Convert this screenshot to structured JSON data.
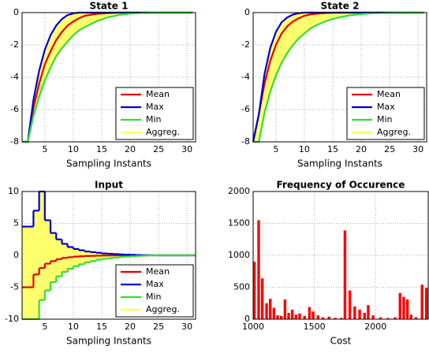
{
  "chart_data": [
    {
      "type": "line",
      "title": "State 1",
      "xlabel": "Sampling Instants",
      "x": [
        1,
        2,
        3,
        4,
        5,
        6,
        7,
        8,
        9,
        10,
        11,
        12,
        14,
        16,
        18,
        20,
        22,
        25,
        31
      ],
      "series": [
        {
          "name": "Mean",
          "color": "#e00000",
          "values": [
            -8,
            -8,
            -5.9,
            -4.4,
            -3.2,
            -2.4,
            -1.7,
            -1.2,
            -0.8,
            -0.55,
            -0.35,
            -0.2,
            -0.08,
            -0.03,
            0,
            0,
            0,
            0,
            0
          ]
        },
        {
          "name": "Max",
          "color": "#0000cc",
          "values": [
            -8,
            -8,
            -5.4,
            -3.6,
            -2.3,
            -1.4,
            -0.8,
            -0.4,
            -0.15,
            -0.05,
            0,
            0,
            0,
            0,
            0,
            0,
            0,
            0,
            0
          ]
        },
        {
          "name": "Min",
          "color": "#33dd33",
          "values": [
            -8,
            -8,
            -6.4,
            -5.2,
            -4.2,
            -3.4,
            -2.7,
            -2.2,
            -1.8,
            -1.4,
            -1.1,
            -0.9,
            -0.55,
            -0.3,
            -0.15,
            -0.06,
            -0.02,
            0,
            0
          ]
        },
        {
          "name": "Aggreg.",
          "color": "#ffff55"
        }
      ],
      "xlim": [
        1,
        31.5
      ],
      "xticks": [
        5,
        10,
        15,
        20,
        25,
        30
      ],
      "ylim": [
        -8,
        0
      ],
      "yticks": [
        0,
        -2,
        -4,
        -6,
        -8
      ],
      "grid": true,
      "legend": "lower right"
    },
    {
      "type": "line",
      "title": "State 2",
      "xlabel": "Sampling Instants",
      "x": [
        1,
        2,
        3,
        4,
        5,
        6,
        7,
        8,
        9,
        10,
        11,
        12,
        14,
        16,
        18,
        20,
        22,
        25,
        31
      ],
      "series": [
        {
          "name": "Mean",
          "color": "#e00000",
          "values": [
            -8,
            -6.3,
            -4.4,
            -3.0,
            -2.0,
            -1.3,
            -0.85,
            -0.55,
            -0.35,
            -0.2,
            -0.12,
            -0.07,
            -0.02,
            0,
            0,
            0,
            0,
            0,
            0
          ]
        },
        {
          "name": "Max",
          "color": "#0000cc",
          "values": [
            -8,
            -6.3,
            -3.8,
            -2.2,
            -1.2,
            -0.6,
            -0.3,
            -0.12,
            -0.04,
            0,
            0,
            0,
            0,
            0,
            0,
            0,
            0,
            0,
            0
          ]
        },
        {
          "name": "Min",
          "color": "#33dd33",
          "values": [
            -8,
            -8,
            -6.2,
            -4.9,
            -3.9,
            -3.1,
            -2.5,
            -2.0,
            -1.6,
            -1.3,
            -1.0,
            -0.8,
            -0.5,
            -0.3,
            -0.17,
            -0.09,
            -0.04,
            -0.01,
            0
          ]
        },
        {
          "name": "Aggreg.",
          "color": "#ffff55"
        }
      ],
      "xlim": [
        1,
        31.5
      ],
      "xticks": [
        5,
        10,
        15,
        20,
        25,
        30
      ],
      "ylim": [
        -8,
        0
      ],
      "yticks": [
        0,
        -2,
        -4,
        -6,
        -8
      ],
      "grid": true,
      "legend": "lower right"
    },
    {
      "type": "line",
      "step": true,
      "title": "Input",
      "xlabel": "Sampling Instants",
      "x": [
        1,
        2,
        3,
        4,
        5,
        6,
        7,
        8,
        9,
        10,
        11,
        12,
        13,
        14,
        15,
        16,
        17,
        18,
        19,
        20,
        21,
        22,
        23,
        24,
        25,
        31
      ],
      "series": [
        {
          "name": "Mean",
          "color": "#e00000",
          "values": [
            -5,
            -5,
            -3,
            -2,
            -1.3,
            -0.9,
            -0.6,
            -0.4,
            -0.3,
            -0.2,
            -0.15,
            -0.1,
            -0.08,
            -0.05,
            -0.03,
            -0.02,
            0,
            0,
            0,
            0,
            0,
            0,
            0,
            0,
            0,
            0
          ]
        },
        {
          "name": "Max",
          "color": "#0000cc",
          "values": [
            4.5,
            4.5,
            7,
            10,
            5.5,
            3.5,
            2.5,
            1.8,
            1.3,
            1.0,
            0.8,
            0.6,
            0.5,
            0.4,
            0.3,
            0.25,
            0.2,
            0.15,
            0.1,
            0.08,
            0.05,
            0.03,
            0.02,
            0,
            0,
            0
          ]
        },
        {
          "name": "Min",
          "color": "#33dd33",
          "values": [
            -10,
            -10,
            -10,
            -7,
            -5.5,
            -4.2,
            -3.3,
            -2.6,
            -2.1,
            -1.7,
            -1.4,
            -1.1,
            -0.9,
            -0.7,
            -0.55,
            -0.45,
            -0.35,
            -0.25,
            -0.2,
            -0.15,
            -0.1,
            -0.05,
            -0.02,
            0,
            0,
            0
          ]
        },
        {
          "name": "Aggreg.",
          "color": "#ffff55"
        }
      ],
      "xlim": [
        1,
        31.5
      ],
      "xticks": [
        5,
        10,
        15,
        20,
        25,
        30
      ],
      "ylim": [
        -10,
        10
      ],
      "yticks": [
        10,
        5,
        0,
        -5,
        -10
      ],
      "grid": true,
      "legend": "lower right"
    },
    {
      "type": "bar",
      "title": "Frequency of Occurence",
      "xlabel": "Cost",
      "color": "#ff0000",
      "x": [
        1010,
        1045,
        1075,
        1110,
        1140,
        1170,
        1200,
        1230,
        1260,
        1290,
        1320,
        1350,
        1380,
        1420,
        1460,
        1490,
        1530,
        1570,
        1620,
        1670,
        1720,
        1750,
        1790,
        1830,
        1870,
        1910,
        1940,
        1980,
        2040,
        2100,
        2160,
        2200,
        2230,
        2260,
        2290,
        2330,
        2380,
        2415
      ],
      "values": [
        900,
        1550,
        640,
        250,
        320,
        180,
        60,
        50,
        310,
        100,
        150,
        70,
        90,
        50,
        190,
        120,
        60,
        30,
        40,
        20,
        20,
        1390,
        450,
        200,
        150,
        100,
        220,
        60,
        30,
        20,
        30,
        410,
        350,
        310,
        70,
        30,
        540,
        490
      ],
      "xlim": [
        1000,
        2430
      ],
      "xticks": [
        1000,
        1500,
        2000
      ],
      "ylim": [
        0,
        2000
      ],
      "yticks": [
        0,
        500,
        1000,
        1500,
        2000
      ],
      "grid": true
    }
  ]
}
